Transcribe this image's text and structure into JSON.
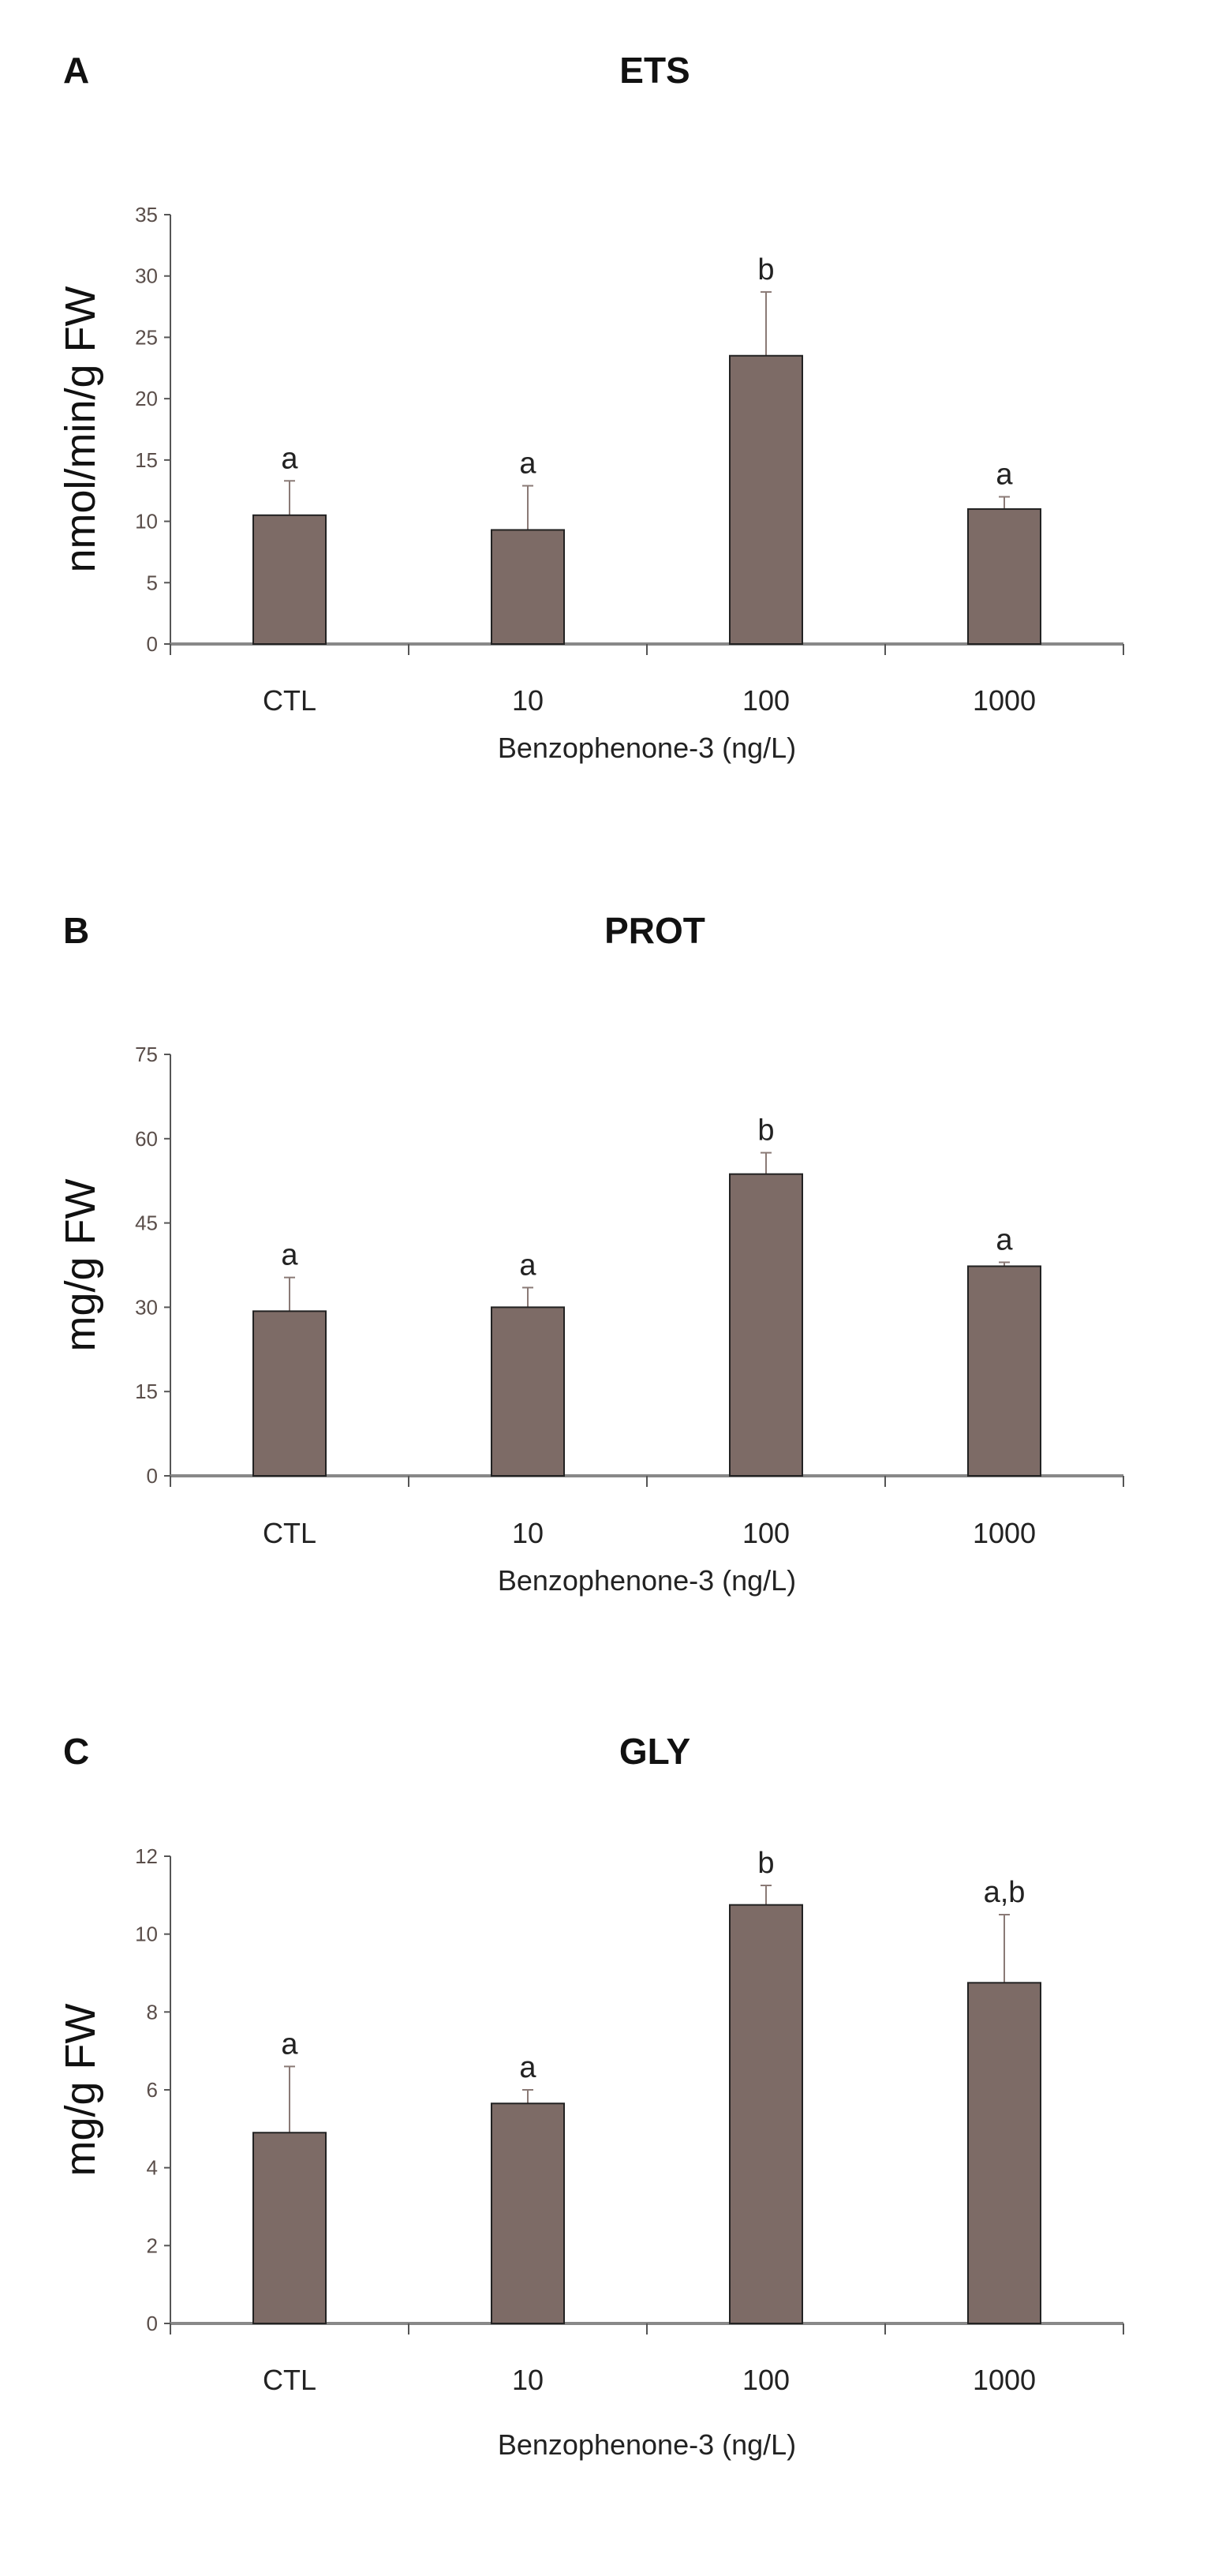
{
  "colors": {
    "bar": "#7d6b66",
    "axis": "#555555",
    "text": "#222222"
  },
  "chart_data": [
    {
      "type": "bar",
      "panel_label": "A",
      "title": "ETS",
      "xlabel": "Benzophenone-3 (ng/L)",
      "ylabel": "nmol/min/g FW",
      "categories": [
        "CTL",
        "10",
        "100",
        "1000"
      ],
      "values": [
        10.5,
        9.3,
        23.5,
        11.0
      ],
      "error_upper": [
        13.3,
        12.9,
        28.7,
        12.0
      ],
      "significance_labels": [
        "a",
        "a",
        "b",
        "a"
      ],
      "ylim": [
        0,
        35
      ],
      "yticks": [
        "0",
        "5",
        "10",
        "15",
        "20",
        "25",
        "30",
        "35"
      ],
      "grid": false
    },
    {
      "type": "bar",
      "panel_label": "B",
      "title": "PROT",
      "xlabel": "Benzophenone-3 (ng/L)",
      "ylabel": "mg/g FW",
      "categories": [
        "CTL",
        "10",
        "100",
        "1000"
      ],
      "values": [
        29.3,
        30.0,
        53.7,
        37.3
      ],
      "error_upper": [
        35.3,
        33.5,
        57.5,
        38.0
      ],
      "significance_labels": [
        "a",
        "a",
        "b",
        "a"
      ],
      "ylim": [
        0,
        75
      ],
      "yticks": [
        "0",
        "15",
        "30",
        "45",
        "60",
        "75"
      ],
      "grid": false
    },
    {
      "type": "bar",
      "panel_label": "C",
      "title": "GLY",
      "xlabel": "Benzophenone-3 (ng/L)",
      "ylabel": "mg/g FW",
      "categories": [
        "CTL",
        "10",
        "100",
        "1000"
      ],
      "values": [
        4.9,
        5.65,
        10.75,
        8.75
      ],
      "error_upper": [
        6.6,
        6.0,
        11.25,
        10.5
      ],
      "significance_labels": [
        "a",
        "a",
        "b",
        "a,b"
      ],
      "ylim": [
        0,
        12
      ],
      "yticks": [
        "0",
        "2",
        "4",
        "6",
        "8",
        "10",
        "12"
      ],
      "grid": false
    }
  ]
}
